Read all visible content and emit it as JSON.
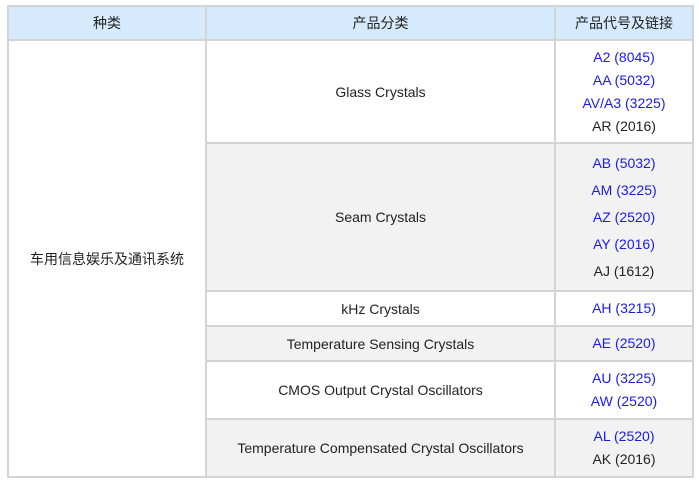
{
  "headers": [
    "种类",
    "产品分类",
    "产品代号及链接"
  ],
  "category": "车用信息娱乐及通讯系统",
  "colors": {
    "header_bg": "#d5eafc",
    "link": "#1a1aee",
    "alt_row": "#f2f2f2"
  },
  "rows": [
    {
      "name": "Glass Crystals",
      "products": [
        {
          "label": "A2 (8045)",
          "link": true
        },
        {
          "label": "AA (5032)",
          "link": true
        },
        {
          "label": "AV/A3 (3225)",
          "link": true
        },
        {
          "label": "AR (2016)",
          "link": false
        }
      ]
    },
    {
      "name": "Seam Crystals",
      "products": [
        {
          "label": "AB (5032)",
          "link": true
        },
        {
          "label": "AM (3225)",
          "link": true
        },
        {
          "label": "AZ (2520)",
          "link": true
        },
        {
          "label": "AY (2016)",
          "link": true
        },
        {
          "label": "AJ (1612)",
          "link": false
        }
      ]
    },
    {
      "name": "kHz Crystals",
      "products": [
        {
          "label": "AH (3215)",
          "link": true
        }
      ]
    },
    {
      "name": "Temperature Sensing Crystals",
      "products": [
        {
          "label": "AE (2520)",
          "link": true
        }
      ]
    },
    {
      "name": "CMOS Output Crystal Oscillators",
      "products": [
        {
          "label": "AU (3225)",
          "link": true
        },
        {
          "label": "AW (2520)",
          "link": true
        }
      ]
    },
    {
      "name": "Temperature Compensated Crystal Oscillators",
      "products": [
        {
          "label": "AL (2520)",
          "link": true
        },
        {
          "label": "AK (2016)",
          "link": false
        }
      ]
    }
  ]
}
